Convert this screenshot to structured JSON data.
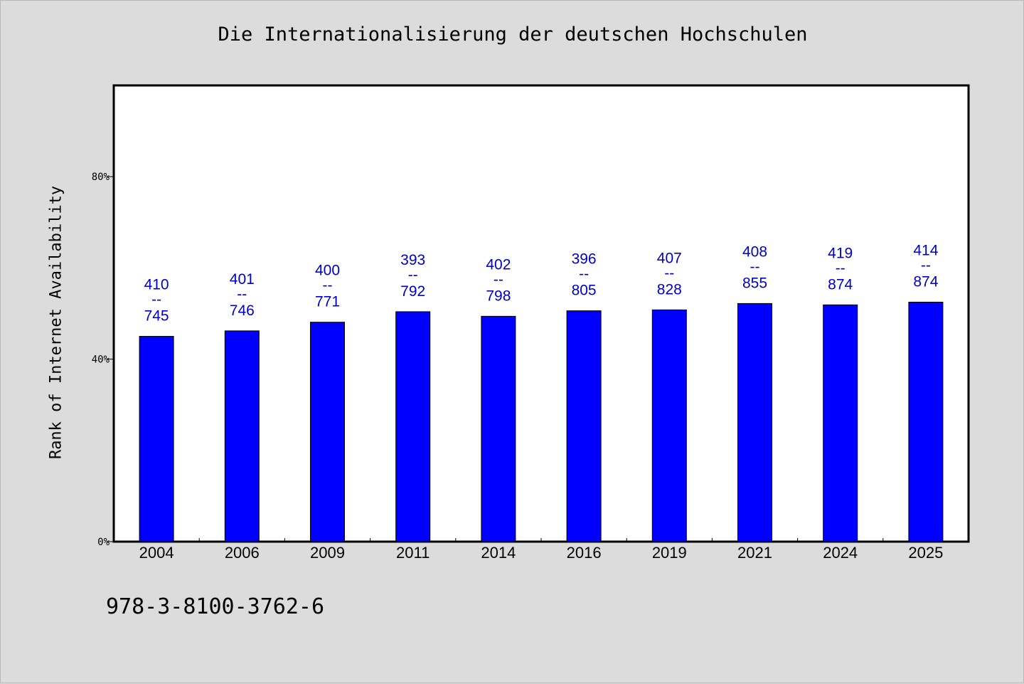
{
  "chart_data": {
    "type": "bar",
    "title": "Die Internationalisierung der deutschen Hochschulen",
    "xlabel": "",
    "ylabel": "Rank of Internet Availability",
    "ylim": [
      0,
      100
    ],
    "y_ticks": [
      {
        "value": 0,
        "label": "0%"
      },
      {
        "value": 40,
        "label": "40%"
      },
      {
        "value": 80,
        "label": "80%"
      }
    ],
    "categories": [
      "2004",
      "2006",
      "2009",
      "2011",
      "2014",
      "2016",
      "2019",
      "2021",
      "2024",
      "2025"
    ],
    "values": [
      45.0,
      46.2,
      48.1,
      50.4,
      49.4,
      50.6,
      50.8,
      52.2,
      51.9,
      52.5
    ],
    "data_labels": [
      {
        "top": "410",
        "sep": "--",
        "bottom": "745"
      },
      {
        "top": "401",
        "sep": "--",
        "bottom": "746"
      },
      {
        "top": "400",
        "sep": "--",
        "bottom": "771"
      },
      {
        "top": "393",
        "sep": "--",
        "bottom": "792"
      },
      {
        "top": "402",
        "sep": "--",
        "bottom": "798"
      },
      {
        "top": "396",
        "sep": "--",
        "bottom": "805"
      },
      {
        "top": "407",
        "sep": "--",
        "bottom": "828"
      },
      {
        "top": "408",
        "sep": "--",
        "bottom": "855"
      },
      {
        "top": "419",
        "sep": "--",
        "bottom": "874"
      },
      {
        "top": "414",
        "sep": "--",
        "bottom": "874"
      }
    ],
    "grid": false,
    "colors": {
      "bar": "#0000ff",
      "label": "#0000cc",
      "plot_bg": "#ffffff",
      "page_bg": "#dcdcdc"
    }
  },
  "footer": {
    "isbn": "978-3-8100-3762-6"
  }
}
